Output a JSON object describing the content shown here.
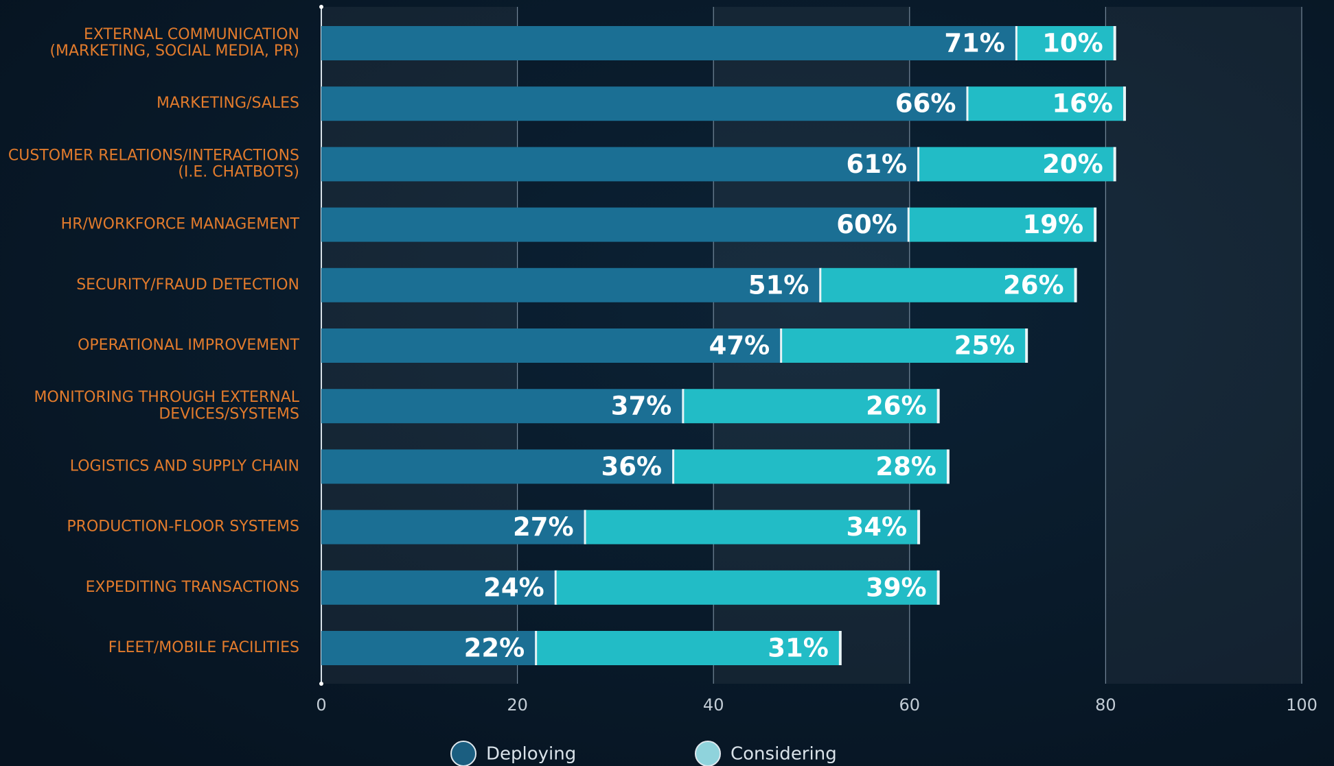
{
  "chart_data": {
    "type": "bar",
    "orientation": "horizontal",
    "stacked": true,
    "categories": [
      "EXTERNAL COMMUNICATION\n(MARKETING, SOCIAL MEDIA, PR)",
      "MARKETING/SALES",
      "CUSTOMER RELATIONS/INTERACTIONS\n(I.E. CHATBOTS)",
      "HR/WORKFORCE MANAGEMENT",
      "SECURITY/FRAUD DETECTION",
      "OPERATIONAL IMPROVEMENT",
      "MONITORING THROUGH EXTERNAL\nDEVICES/SYSTEMS",
      "LOGISTICS AND SUPPLY CHAIN",
      "PRODUCTION-FLOOR SYSTEMS",
      "EXPEDITING TRANSACTIONS",
      "FLEET/MOBILE FACILITIES"
    ],
    "series": [
      {
        "name": "Deploying",
        "color": "#1b6f94",
        "legend_color": "#1b5e80",
        "values": [
          71,
          66,
          61,
          60,
          51,
          47,
          37,
          36,
          27,
          24,
          22
        ],
        "value_labels": [
          "71%",
          "66%",
          "61%",
          "60%",
          "51%",
          "47%",
          "37%",
          "36%",
          "27%",
          "24%",
          "22%"
        ]
      },
      {
        "name": "Considering",
        "color": "#22bcc6",
        "legend_color": "#8fd3dc",
        "values": [
          10,
          16,
          20,
          19,
          26,
          25,
          26,
          28,
          34,
          39,
          31
        ],
        "value_labels": [
          "10%",
          "16%",
          "20%",
          "19%",
          "26%",
          "25%",
          "26%",
          "28%",
          "34%",
          "39%",
          "31%"
        ]
      }
    ],
    "xlim": [
      0,
      100
    ],
    "xticks": [
      0,
      20,
      40,
      60,
      80,
      100
    ],
    "grid": true
  }
}
